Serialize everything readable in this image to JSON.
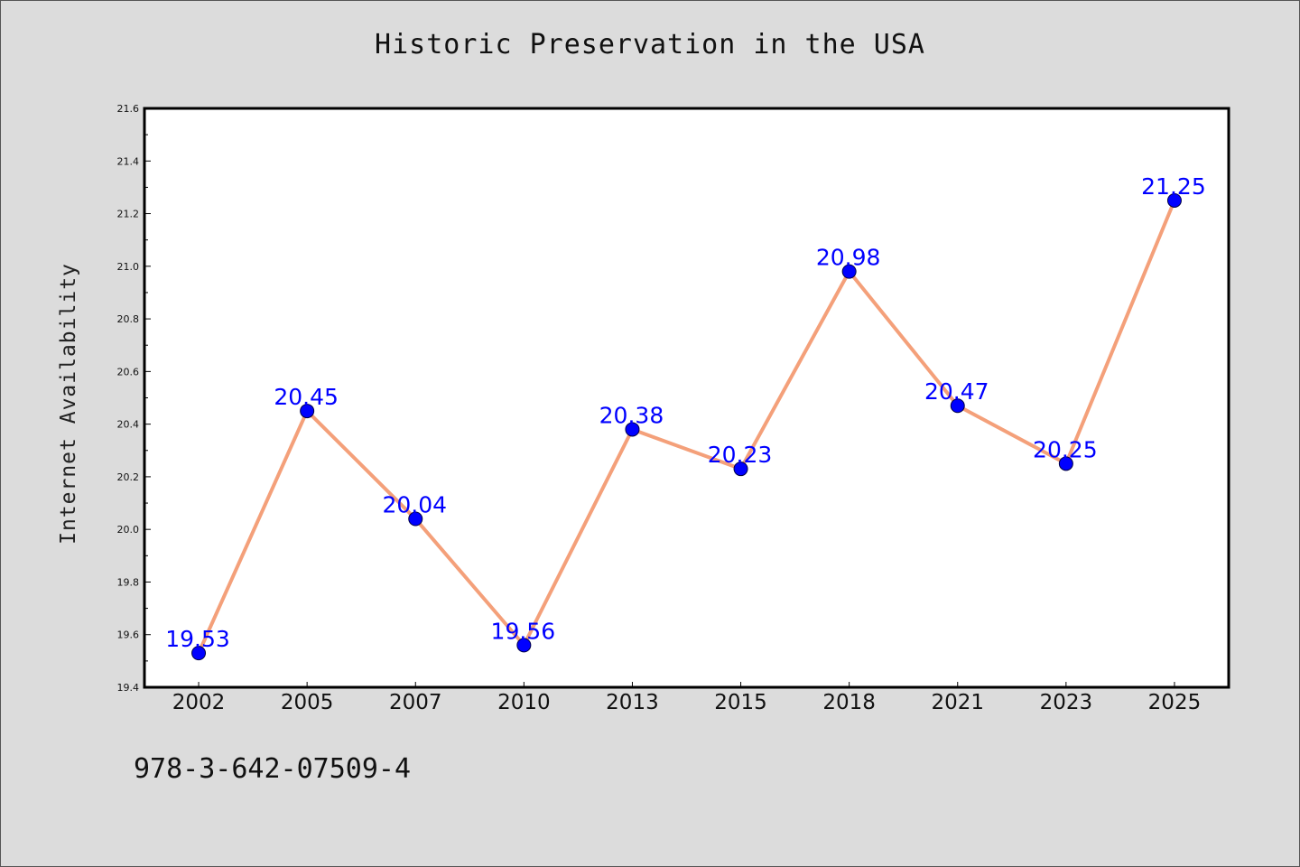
{
  "chart_data": {
    "type": "line",
    "title": "Historic Preservation in the USA",
    "xlabel": "",
    "ylabel": "Internet Availability",
    "categories": [
      "2002",
      "2005",
      "2007",
      "2010",
      "2013",
      "2015",
      "2018",
      "2021",
      "2023",
      "2025"
    ],
    "series": [
      {
        "values": [
          19.53,
          20.45,
          20.04,
          19.56,
          20.38,
          20.23,
          20.98,
          20.47,
          20.25,
          21.25
        ],
        "labels": [
          "19.53",
          "20.45",
          "20.04",
          "19.56",
          "20.38",
          "20.23",
          "20.98",
          "20.47",
          "20.25",
          "21.25"
        ],
        "line_color": "#f4a07a",
        "marker_color": "#0000ff"
      }
    ],
    "ylim": [
      19.4,
      21.6
    ],
    "yticks": [
      "19.4",
      "19.6",
      "19.8",
      "20.0",
      "20.2",
      "20.4",
      "20.6",
      "20.8",
      "21.0",
      "21.2",
      "21.4",
      "21.6"
    ],
    "grid": false,
    "legend": "none"
  },
  "footer": {
    "isbn": "978-3-642-07509-4"
  },
  "colors": {
    "background": "#dcdcdc",
    "plot_background": "#ffffff",
    "line": "#f4a07a",
    "marker": "#0000ff",
    "data_label": "#0000ff"
  }
}
